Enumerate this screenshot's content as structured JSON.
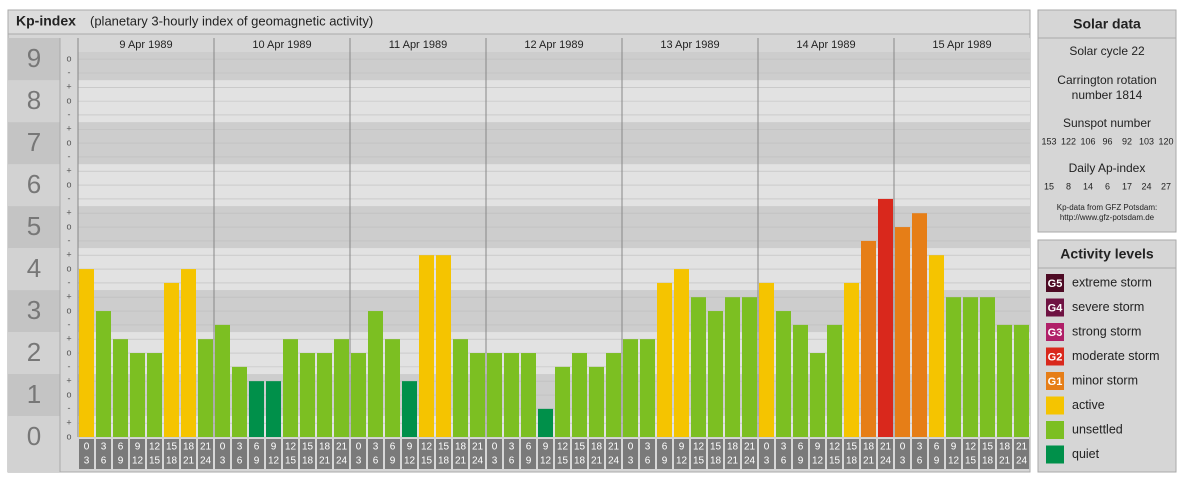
{
  "chart_data": {
    "type": "bar",
    "title": "Kp-index",
    "subtitle": "(planetary 3-hourly index of geomagnetic activity)",
    "days": [
      "9 Apr 1989",
      "10 Apr 1989",
      "11 Apr 1989",
      "12 Apr 1989",
      "13 Apr 1989",
      "14 Apr 1989",
      "15 Apr 1989"
    ],
    "hour_bins": [
      {
        "from": "0",
        "to": "3"
      },
      {
        "from": "3",
        "to": "6"
      },
      {
        "from": "6",
        "to": "9"
      },
      {
        "from": "9",
        "to": "12"
      },
      {
        "from": "12",
        "to": "15"
      },
      {
        "from": "15",
        "to": "18"
      },
      {
        "from": "18",
        "to": "21"
      },
      {
        "from": "21",
        "to": "24"
      }
    ],
    "values": [
      4,
      3,
      2.33,
      2,
      2,
      3.67,
      4,
      2.33,
      2.67,
      1.67,
      1.33,
      1.33,
      2.33,
      2,
      2,
      2.33,
      2,
      3,
      2.33,
      1.33,
      4.33,
      4.33,
      2.33,
      2,
      2,
      2,
      2,
      0.67,
      1.67,
      2,
      1.67,
      2,
      2.33,
      2.33,
      3.67,
      4,
      3.33,
      3,
      3.33,
      3.33,
      3.67,
      3,
      2.67,
      2,
      2.67,
      3.67,
      4.67,
      5.67,
      5,
      5.33,
      4.33,
      3.33,
      3.33,
      3.33,
      2.67,
      2.67
    ],
    "colors": [
      "#f5c400",
      "#7cbf22",
      "#7cbf22",
      "#7cbf22",
      "#7cbf22",
      "#f5c400",
      "#f5c400",
      "#7cbf22",
      "#7cbf22",
      "#7cbf22",
      "#00904a",
      "#00904a",
      "#7cbf22",
      "#7cbf22",
      "#7cbf22",
      "#7cbf22",
      "#7cbf22",
      "#7cbf22",
      "#7cbf22",
      "#00904a",
      "#f5c400",
      "#f5c400",
      "#7cbf22",
      "#7cbf22",
      "#7cbf22",
      "#7cbf22",
      "#7cbf22",
      "#00904a",
      "#7cbf22",
      "#7cbf22",
      "#7cbf22",
      "#7cbf22",
      "#7cbf22",
      "#7cbf22",
      "#f5c400",
      "#f5c400",
      "#7cbf22",
      "#7cbf22",
      "#7cbf22",
      "#7cbf22",
      "#f5c400",
      "#7cbf22",
      "#7cbf22",
      "#7cbf22",
      "#7cbf22",
      "#f5c400",
      "#e67e17",
      "#d9281c",
      "#e67e17",
      "#e67e17",
      "#f5c400",
      "#7cbf22",
      "#7cbf22",
      "#7cbf22",
      "#7cbf22",
      "#7cbf22"
    ],
    "ylim": [
      0,
      9.17
    ],
    "yticks": [
      0,
      1,
      2,
      3,
      4,
      5,
      6,
      7,
      8,
      9
    ],
    "minor_yticks": [
      {
        "value": 0,
        "label": "o"
      },
      {
        "value": 0.33,
        "label": "+"
      },
      {
        "value": 0.67,
        "label": "-"
      },
      {
        "value": 1,
        "label": "o"
      },
      {
        "value": 1.33,
        "label": "+"
      },
      {
        "value": 1.67,
        "label": "-"
      },
      {
        "value": 2,
        "label": "o"
      },
      {
        "value": 2.33,
        "label": "+"
      },
      {
        "value": 2.67,
        "label": "-"
      },
      {
        "value": 3,
        "label": "o"
      },
      {
        "value": 3.33,
        "label": "+"
      },
      {
        "value": 3.67,
        "label": "-"
      },
      {
        "value": 4,
        "label": "o"
      },
      {
        "value": 4.33,
        "label": "+"
      },
      {
        "value": 4.67,
        "label": "-"
      },
      {
        "value": 5,
        "label": "o"
      },
      {
        "value": 5.33,
        "label": "+"
      },
      {
        "value": 5.67,
        "label": "-"
      },
      {
        "value": 6,
        "label": "o"
      },
      {
        "value": 6.33,
        "label": "+"
      },
      {
        "value": 6.67,
        "label": "-"
      },
      {
        "value": 7,
        "label": "o"
      },
      {
        "value": 7.33,
        "label": "+"
      },
      {
        "value": 7.67,
        "label": "-"
      },
      {
        "value": 8,
        "label": "o"
      },
      {
        "value": 8.33,
        "label": "+"
      },
      {
        "value": 8.67,
        "label": "-"
      },
      {
        "value": 9,
        "label": "o"
      }
    ],
    "grid": true,
    "solar_data": {
      "title": "Solar data",
      "cycle": "Solar cycle 22",
      "carrington_1": "Carrington rotation",
      "carrington_2": "number 1814",
      "sunspot_title": "Sunspot number",
      "sunspot": [
        "153",
        "122",
        "106",
        "96",
        "92",
        "103",
        "120"
      ],
      "ap_title": "Daily Ap-index",
      "ap": [
        "15",
        "8",
        "14",
        "6",
        "17",
        "24",
        "27"
      ],
      "source_1": "Kp-data from GFZ Potsdam:",
      "source_2": "http://www.gfz-potsdam.de"
    },
    "legend": {
      "title": "Activity levels",
      "items": [
        {
          "badge": "G5",
          "label": "extreme storm",
          "color": "#4d0a24"
        },
        {
          "badge": "G4",
          "label": "severe storm",
          "color": "#6e1242"
        },
        {
          "badge": "G3",
          "label": "strong storm",
          "color": "#b01f68"
        },
        {
          "badge": "G2",
          "label": "moderate storm",
          "color": "#d9281c"
        },
        {
          "badge": "G1",
          "label": "minor storm",
          "color": "#e67e17"
        },
        {
          "label": "active",
          "color": "#f5c400"
        },
        {
          "label": "unsettled",
          "color": "#7cbf22"
        },
        {
          "label": "quiet",
          "color": "#00904a"
        }
      ]
    }
  }
}
